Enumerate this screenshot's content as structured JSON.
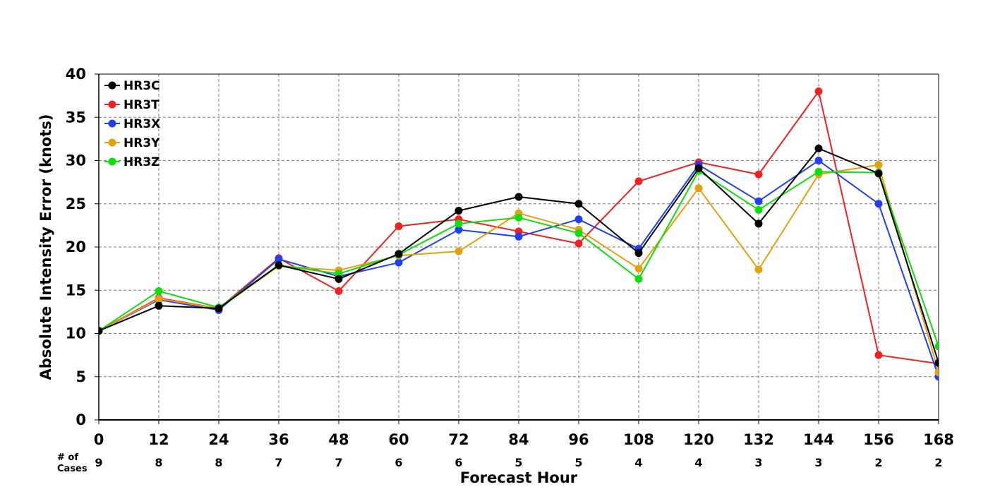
{
  "chart_data": {
    "type": "line",
    "xlabel": "Forecast Hour",
    "ylabel": "Absolute Intensity Error (knots)",
    "xlim": [
      0,
      168
    ],
    "ylim": [
      0,
      40
    ],
    "x": [
      0,
      12,
      24,
      36,
      48,
      60,
      72,
      84,
      96,
      108,
      120,
      132,
      144,
      156,
      168
    ],
    "x_ticks": [
      "0",
      "12",
      "24",
      "36",
      "48",
      "60",
      "72",
      "84",
      "96",
      "108",
      "120",
      "132",
      "144",
      "156",
      "168"
    ],
    "y_ticks": [
      "0",
      "5",
      "10",
      "15",
      "20",
      "25",
      "30",
      "35",
      "40"
    ],
    "grid": true,
    "legend_position": "top-left",
    "cases_label": [
      "# of",
      "Cases"
    ],
    "cases": [
      "9",
      "8",
      "8",
      "7",
      "7",
      "6",
      "6",
      "5",
      "5",
      "4",
      "4",
      "3",
      "3",
      "2",
      "2"
    ],
    "series": [
      {
        "name": "HR3T",
        "color": "#ee2222",
        "values": [
          10.3,
          14.1,
          12.9,
          18.7,
          14.9,
          22.4,
          23.2,
          21.8,
          20.4,
          27.6,
          29.8,
          28.4,
          38.0,
          7.5,
          6.5
        ]
      },
      {
        "name": "HR3X",
        "color": "#2040ee",
        "values": [
          10.3,
          13.9,
          12.7,
          18.6,
          16.6,
          18.2,
          22.0,
          21.2,
          23.2,
          19.8,
          29.5,
          25.3,
          30.0,
          25.0,
          5.0
        ]
      },
      {
        "name": "HR3Y",
        "color": "#e5a010",
        "values": [
          10.3,
          14.0,
          12.9,
          17.8,
          17.3,
          19.0,
          19.5,
          23.9,
          22.0,
          17.5,
          26.8,
          17.4,
          28.4,
          29.5,
          5.5
        ]
      },
      {
        "name": "HR3Z",
        "color": "#10dd10",
        "values": [
          10.3,
          14.9,
          13.0,
          17.9,
          16.9,
          19.1,
          22.7,
          23.4,
          21.6,
          16.3,
          28.8,
          24.3,
          28.7,
          28.6,
          8.5
        ]
      },
      {
        "name": "HR3C",
        "color": "#000000",
        "values": [
          10.3,
          13.2,
          12.9,
          17.9,
          16.3,
          19.2,
          24.2,
          25.8,
          25.0,
          19.3,
          29.1,
          22.7,
          31.4,
          28.5,
          6.6
        ]
      }
    ],
    "legend_order": [
      "HR3C",
      "HR3T",
      "HR3X",
      "HR3Y",
      "HR3Z"
    ]
  }
}
